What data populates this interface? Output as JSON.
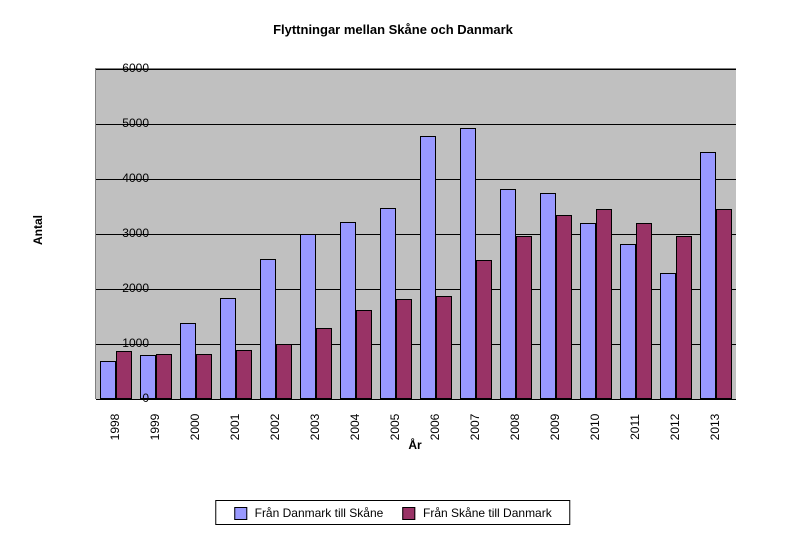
{
  "chart": {
    "type": "bar",
    "title": "Flyttningar mellan Skåne och Danmark",
    "title_fontsize": 13,
    "title_fontweight": "bold",
    "xlabel": "År",
    "ylabel": "Antal",
    "label_fontsize": 12,
    "label_fontweight": "bold",
    "tick_fontsize": 12,
    "background_color": "#ffffff",
    "plot_background_color": "#c0c0c0",
    "grid_color": "#000000",
    "ylim_min": 0,
    "ylim_max": 6000,
    "ytick_step": 1000,
    "yticks": [
      0,
      1000,
      2000,
      3000,
      4000,
      5000,
      6000
    ],
    "bar_border_color": "#000000",
    "bar_group_gap_ratio": 0.22,
    "categories": [
      "1998",
      "1999",
      "2000",
      "2001",
      "2002",
      "2003",
      "2004",
      "2005",
      "2006",
      "2007",
      "2008",
      "2009",
      "2010",
      "2011",
      "2012",
      "2013"
    ],
    "series": [
      {
        "name": "Från Danmark till Skåne",
        "color": "#9999ff",
        "values": [
          700,
          800,
          1380,
          1830,
          2550,
          3000,
          3220,
          3470,
          4780,
          4930,
          3820,
          3740,
          3200,
          2820,
          2300,
          4500
        ]
      },
      {
        "name": "Från Skåne till Danmark",
        "color": "#993366",
        "values": [
          880,
          810,
          810,
          900,
          1000,
          1300,
          1620,
          1810,
          1870,
          2530,
          2970,
          3350,
          3450,
          3200,
          2970,
          3450
        ]
      }
    ],
    "legend_position": "bottom",
    "legend_border_color": "#000000"
  }
}
